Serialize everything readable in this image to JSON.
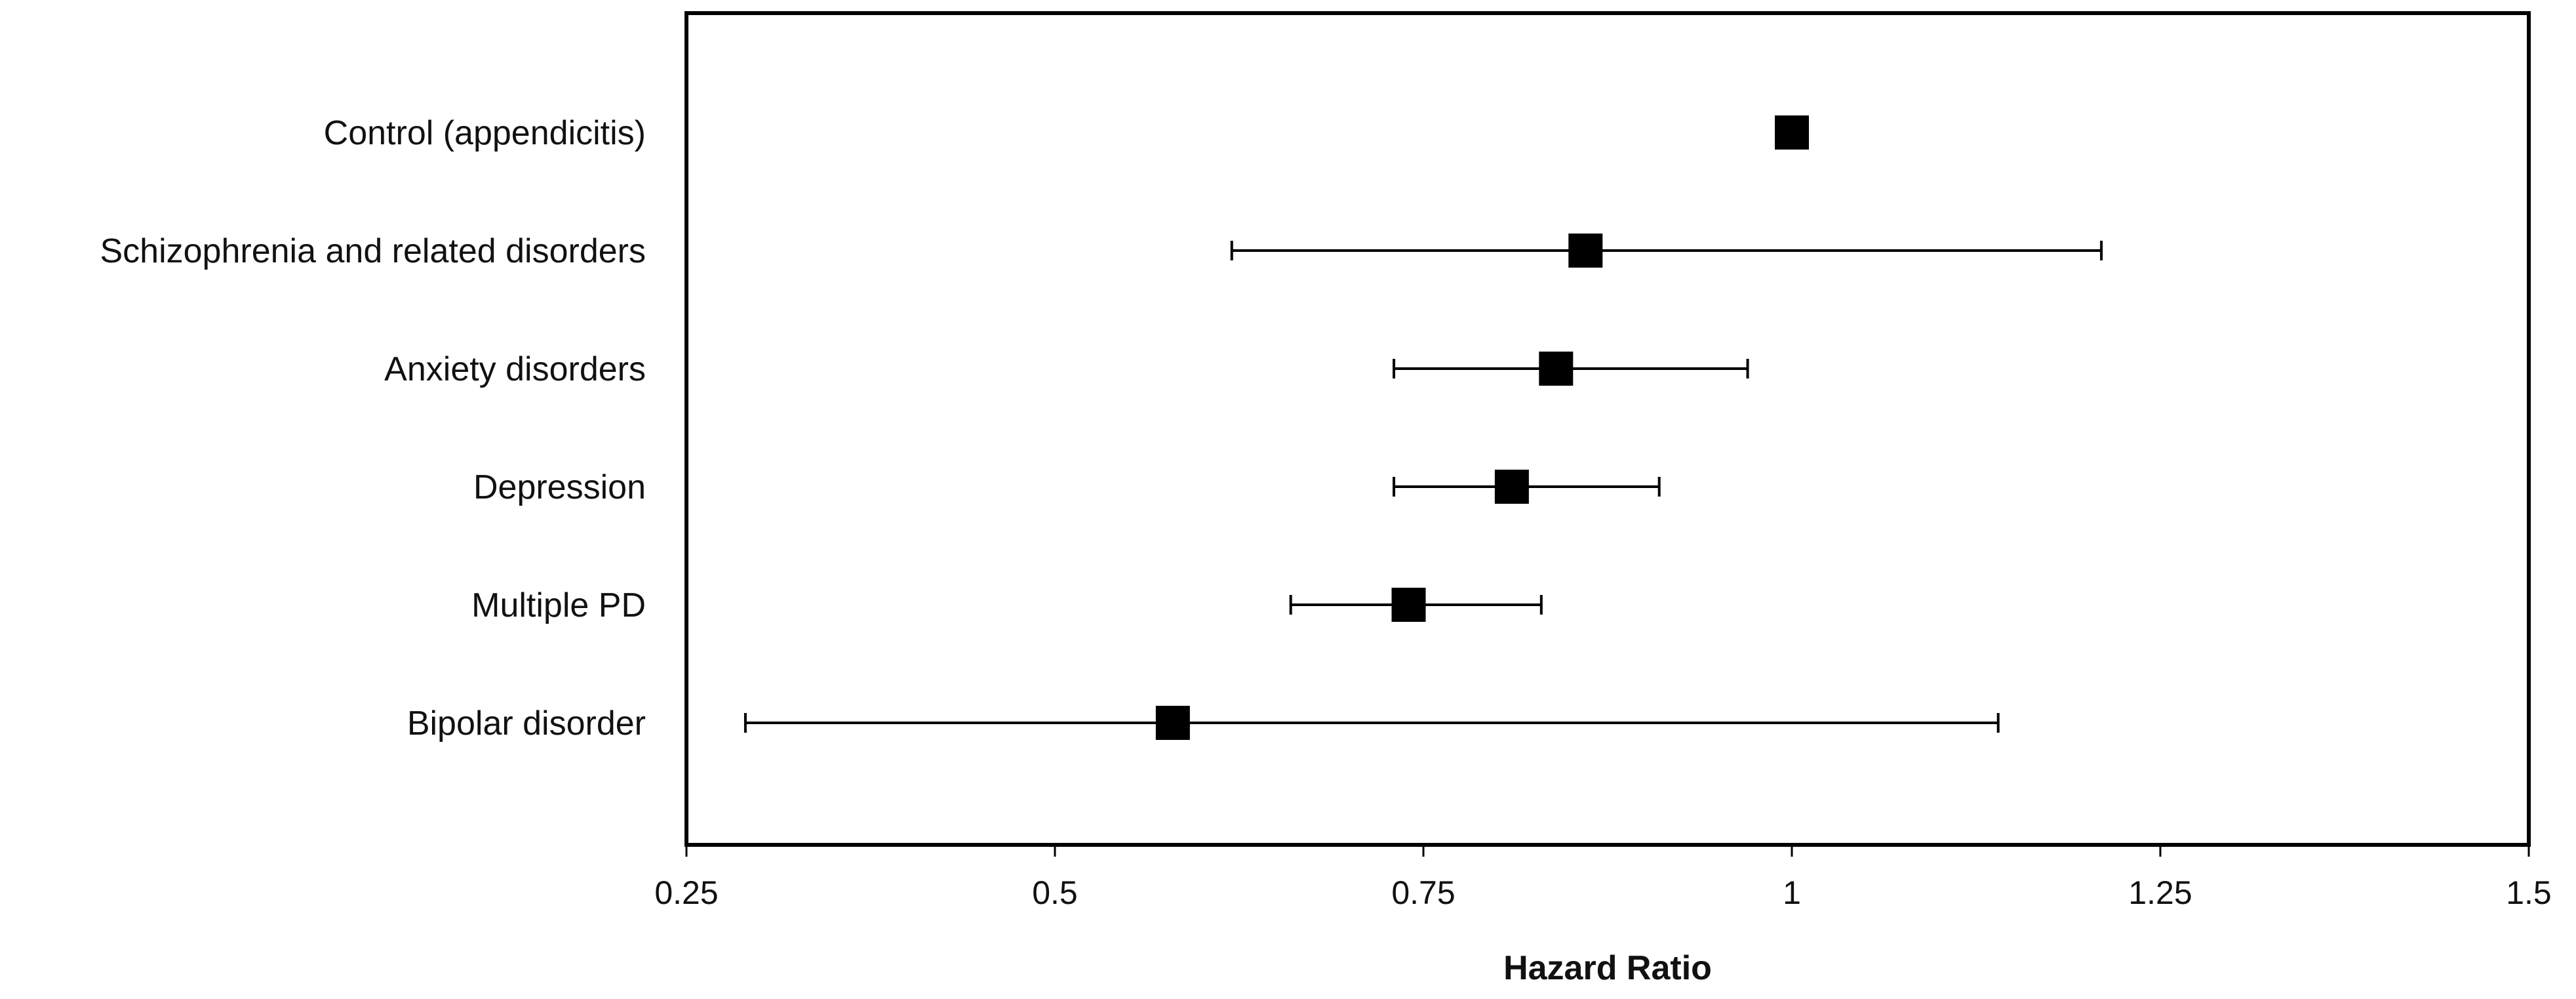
{
  "chart_data": {
    "type": "scatter",
    "subtype": "forest-plot",
    "title": "",
    "xlabel": "Hazard Ratio",
    "ylabel": "",
    "xlim": [
      0.25,
      1.5
    ],
    "xticks": [
      0.25,
      0.5,
      0.75,
      1,
      1.25,
      1.5
    ],
    "xtick_labels": [
      "0.25",
      "0.5",
      "0.75",
      "1",
      "1.25",
      "1.5"
    ],
    "grid": false,
    "legend": "none",
    "marker": "square",
    "marker_color": "#000000",
    "categories": [
      "Control (appendicitis)",
      "Schizophrenia and related disorders",
      "Anxiety disorders",
      "Depression",
      "Multiple PD",
      "Bipolar disorder"
    ],
    "series": [
      {
        "values": [
          1.0,
          0.86,
          0.84,
          0.81,
          0.74,
          0.58
        ],
        "ci_lower": [
          null,
          0.62,
          0.73,
          0.73,
          0.66,
          0.29
        ],
        "ci_upper": [
          null,
          1.21,
          0.97,
          0.91,
          0.83,
          1.14
        ]
      }
    ]
  }
}
